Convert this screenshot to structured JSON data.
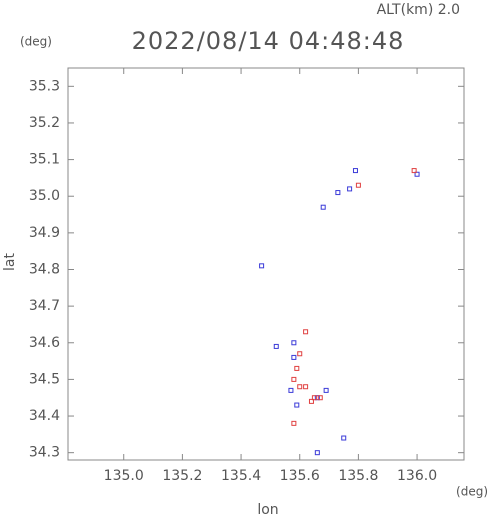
{
  "chart_data": {
    "type": "scatter",
    "title": "2022/08/14 04:48:48",
    "annotation": "ALT(km) 2.0",
    "y_unit": "(deg)",
    "x_unit": "(deg)",
    "xlabel": "lon",
    "ylabel": "lat",
    "xlim": [
      134.81,
      136.16
    ],
    "ylim": [
      34.28,
      35.35
    ],
    "xticks": [
      {
        "value": 135,
        "label": "135.0"
      },
      135.2,
      135.4,
      135.6,
      135.8,
      {
        "value": 136,
        "label": "136.0"
      }
    ],
    "yticks": [
      34.3,
      34.4,
      34.5,
      34.6,
      34.7,
      34.8,
      34.9,
      {
        "value": 35,
        "label": "35.0"
      },
      35.1,
      35.2,
      35.3
    ],
    "series": [
      {
        "color": "#3a3ad8",
        "x": [
          136.0,
          135.79,
          135.73,
          135.47,
          135.52,
          135.58,
          135.57,
          135.59,
          135.69,
          135.66,
          135.75,
          135.66,
          135.58,
          135.77,
          135.68
        ],
        "y": [
          35.06,
          35.07,
          35.01,
          34.81,
          34.59,
          34.56,
          34.47,
          34.43,
          34.47,
          34.45,
          34.34,
          34.3,
          34.6,
          35.02,
          34.97
        ]
      },
      {
        "color": "#e04040",
        "x": [
          135.6,
          135.62,
          135.65,
          135.64,
          135.6,
          135.59,
          135.58,
          135.99,
          135.8,
          135.67,
          135.62,
          135.58
        ],
        "y": [
          34.48,
          34.48,
          34.45,
          34.44,
          34.57,
          34.53,
          34.5,
          35.07,
          35.03,
          34.45,
          34.63,
          34.38
        ]
      }
    ]
  }
}
